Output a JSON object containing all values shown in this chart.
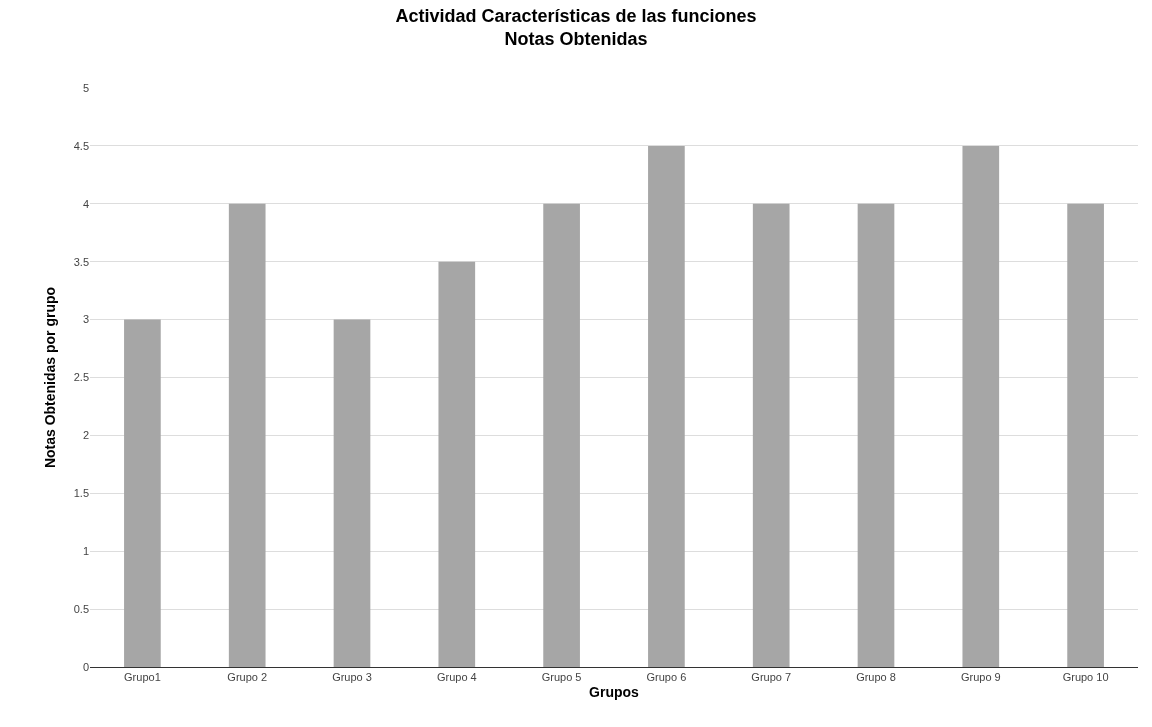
{
  "chart_data": {
    "type": "bar",
    "title": "Actividad Características de las funciones\nNotas Obtenidas",
    "xlabel": "Grupos",
    "ylabel": "Notas Obtenidas por grupo",
    "categories": [
      "Grupo1",
      "Grupo 2",
      "Grupo 3",
      "Grupo 4",
      "Grupo 5",
      "Grupo 6",
      "Grupo 7",
      "Grupo 8",
      "Grupo 9",
      "Grupo 10"
    ],
    "values": [
      3,
      4,
      3,
      3.5,
      4,
      4.5,
      4,
      4,
      4.5,
      4
    ],
    "color": "#a6a6a6",
    "ylim": [
      0,
      5
    ],
    "yticks": [
      0,
      0.5,
      1,
      1.5,
      2,
      2.5,
      3,
      3.5,
      4,
      4.5,
      5
    ],
    "grid": "y"
  }
}
